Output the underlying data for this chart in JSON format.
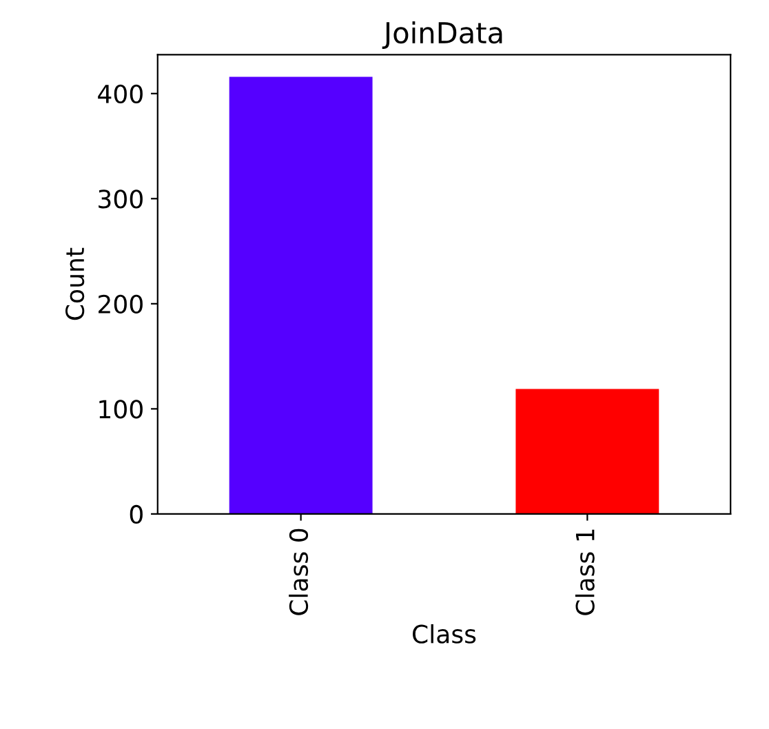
{
  "chart_data": {
    "type": "bar",
    "title": "JoinData",
    "xlabel": "Class",
    "ylabel": "Count",
    "categories": [
      "Class 0",
      "Class 1"
    ],
    "values": [
      416,
      119
    ],
    "colors": [
      "#5500ff",
      "#ff0000"
    ],
    "ylim": [
      0,
      437
    ],
    "yticks": [
      0,
      100,
      200,
      300,
      400
    ],
    "grid": false
  }
}
